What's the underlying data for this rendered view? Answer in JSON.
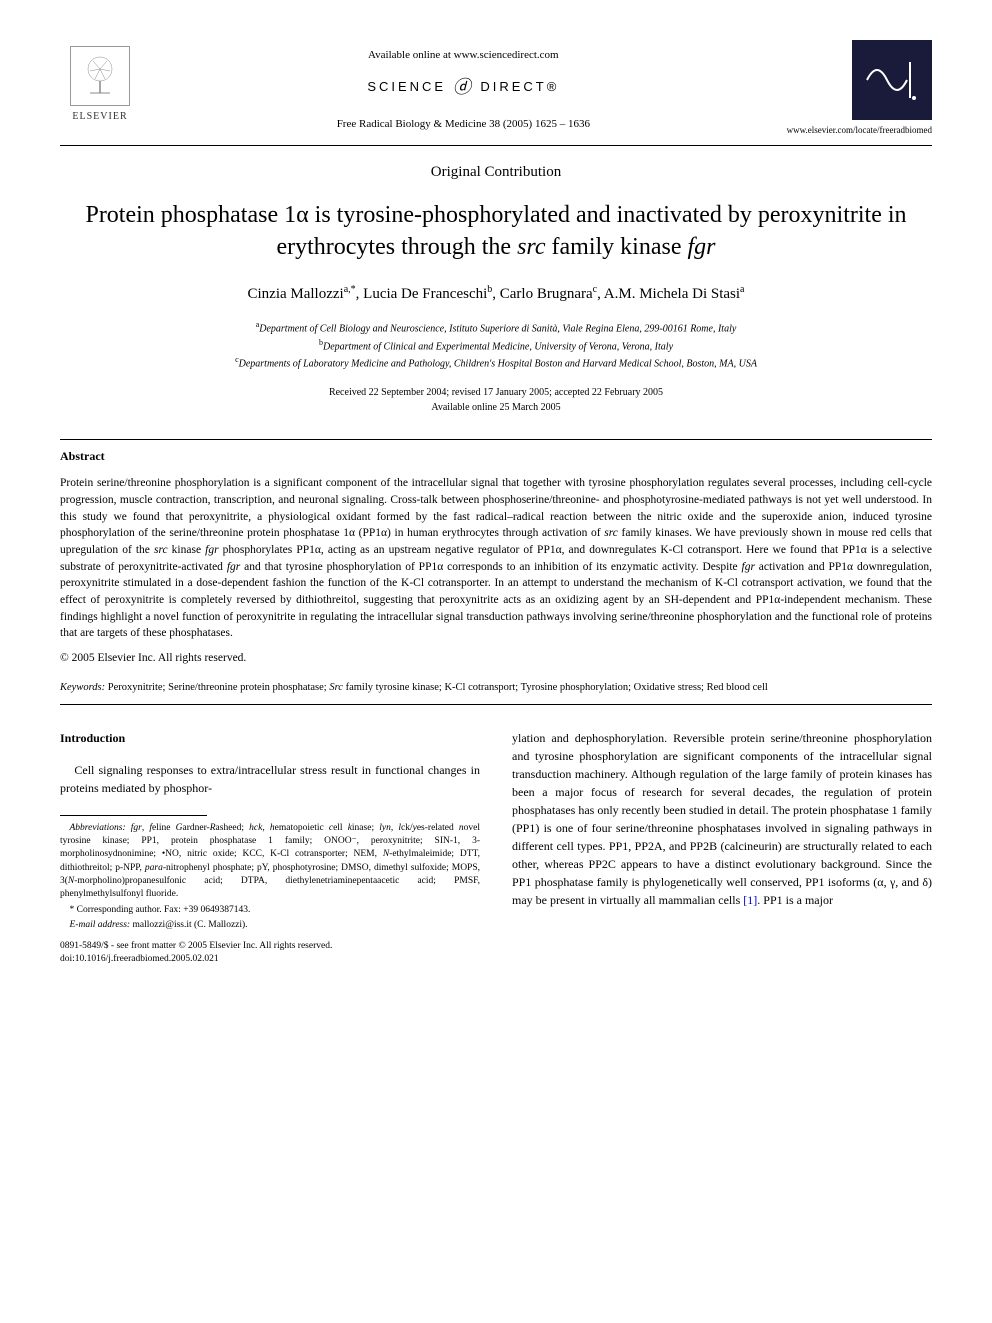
{
  "header": {
    "available_online": "Available online at www.sciencedirect.com",
    "science_direct_prefix": "SCIENCE",
    "science_direct_suffix": "DIRECT®",
    "citation": "Free Radical Biology & Medicine 38 (2005) 1625 – 1636",
    "elsevier_label": "ELSEVIER",
    "journal_url": "www.elsevier.com/locate/freeradbiomed"
  },
  "article_type": "Original Contribution",
  "title_parts": {
    "p1": "Protein phosphatase 1α is tyrosine-phosphorylated and inactivated by peroxynitrite in erythrocytes through the ",
    "p2": "src",
    "p3": " family kinase ",
    "p4": "fgr"
  },
  "authors_html": "Cinzia Mallozzi",
  "authors": {
    "a1": "Cinzia Mallozzi",
    "a1_sup": "a,*",
    "a2": "Lucia De Franceschi",
    "a2_sup": "b",
    "a3": "Carlo Brugnara",
    "a3_sup": "c",
    "a4": "A.M. Michela Di Stasi",
    "a4_sup": "a"
  },
  "affiliations": {
    "a": "Department of Cell Biology and Neuroscience, Istituto Superiore di Sanità, Viale Regina Elena, 299-00161 Rome, Italy",
    "b": "Department of Clinical and Experimental Medicine, University of Verona, Verona, Italy",
    "c": "Departments of Laboratory Medicine and Pathology, Children's Hospital Boston and Harvard Medical School, Boston, MA, USA"
  },
  "dates": {
    "line1": "Received 22 September 2004; revised 17 January 2005; accepted 22 February 2005",
    "line2": "Available online 25 March 2005"
  },
  "abstract": {
    "heading": "Abstract",
    "text_parts": [
      {
        "t": "Protein serine/threonine phosphorylation is a significant component of the intracellular signal that together with tyrosine phosphorylation regulates several processes, including cell-cycle progression, muscle contraction, transcription, and neuronal signaling. Cross-talk between phosphoserine/threonine- and phosphotyrosine-mediated pathways is not yet well understood. In this study we found that peroxynitrite, a physiological oxidant formed by the fast radical–radical reaction between the nitric oxide and the superoxide anion, induced tyrosine phosphorylation of the serine/threonine protein phosphatase 1α (PP1α) in human erythrocytes through activation of "
      },
      {
        "t": "src",
        "i": true
      },
      {
        "t": " family kinases. We have previously shown in mouse red cells that upregulation of the "
      },
      {
        "t": "src",
        "i": true
      },
      {
        "t": " kinase "
      },
      {
        "t": "fgr",
        "i": true
      },
      {
        "t": " phosphorylates PP1α, acting as an upstream negative regulator of PP1α, and downregulates K-Cl cotransport. Here we found that PP1α is a selective substrate of peroxynitrite-activated "
      },
      {
        "t": "fgr",
        "i": true
      },
      {
        "t": " and that tyrosine phosphorylation of PP1α corresponds to an inhibition of its enzymatic activity. Despite "
      },
      {
        "t": "fgr",
        "i": true
      },
      {
        "t": " activation and PP1α downregulation, peroxynitrite stimulated in a dose-dependent fashion the function of the K-Cl cotransporter. In an attempt to understand the mechanism of K-Cl cotransport activation, we found that the effect of peroxynitrite is completely reversed by dithiothreitol, suggesting that peroxynitrite acts as an oxidizing agent by an SH-dependent and PP1α-independent mechanism. These findings highlight a novel function of peroxynitrite in regulating the intracellular signal transduction pathways involving serine/threonine phosphorylation and the functional role of proteins that are targets of these phosphatases."
      }
    ],
    "copyright": "© 2005 Elsevier Inc. All rights reserved."
  },
  "keywords": {
    "label": "Keywords:",
    "text_parts": [
      {
        "t": " Peroxynitrite; Serine/threonine protein phosphatase; "
      },
      {
        "t": "Src",
        "i": true
      },
      {
        "t": " family tyrosine kinase; K-Cl cotransport; Tyrosine phosphorylation; Oxidative stress; Red blood cell"
      }
    ]
  },
  "intro": {
    "heading": "Introduction",
    "col1_p1": "Cell signaling responses to extra/intracellular stress result in functional changes in proteins mediated by phosphor-",
    "col2_p1_parts": [
      {
        "t": "ylation and dephosphorylation. Reversible protein serine/threonine phosphorylation and tyrosine phosphorylation are significant components of the intracellular signal transduction machinery. Although regulation of the large family of protein kinases has been a major focus of research for several decades, the regulation of protein phosphatases has only recently been studied in detail. The protein phosphatase 1 family (PP1) is one of four serine/threonine phosphatases involved in signaling pathways in different cell types. PP1, PP2A, and PP2B (calcineurin) are structurally related to each other, whereas PP2C appears to have a distinct evolutionary background. Since the PP1 phosphatase family is phylogenetically well conserved, PP1 isoforms (α, γ, and δ) may be present in virtually all mammalian cells "
      },
      {
        "t": "[1]",
        "link": true
      },
      {
        "t": ". PP1 is a major"
      }
    ]
  },
  "footnotes": {
    "abbrev_label": "Abbreviations:",
    "abbrev_parts": [
      {
        "t": " fgr",
        "i": true
      },
      {
        "t": ", "
      },
      {
        "t": "f",
        "i": true
      },
      {
        "t": "eline "
      },
      {
        "t": "G",
        "i": true
      },
      {
        "t": "ardner-"
      },
      {
        "t": "R",
        "i": true
      },
      {
        "t": "asheed; "
      },
      {
        "t": "hck",
        "i": true
      },
      {
        "t": ", "
      },
      {
        "t": "h",
        "i": true
      },
      {
        "t": "ematopoietic "
      },
      {
        "t": "c",
        "i": true
      },
      {
        "t": "ell "
      },
      {
        "t": "k",
        "i": true
      },
      {
        "t": "inase; "
      },
      {
        "t": "lyn",
        "i": true
      },
      {
        "t": ", "
      },
      {
        "t": "l",
        "i": true
      },
      {
        "t": "ck/"
      },
      {
        "t": "y",
        "i": true
      },
      {
        "t": "es-related "
      },
      {
        "t": "n",
        "i": true
      },
      {
        "t": "ovel tyrosine kinase; PP1, protein phosphatase 1 family; ONOO⁻, peroxynitrite; SIN-1, 3-morpholinosydnonimine; •NO, nitric oxide; KCC, K-Cl cotransporter; NEM, "
      },
      {
        "t": "N",
        "i": true
      },
      {
        "t": "-ethylmaleimide; DTT, dithiothreitol; p-NPP, "
      },
      {
        "t": "para",
        "i": true
      },
      {
        "t": "-nitrophenyl phosphate; pY, phosphotyrosine; DMSO, dimethyl sulfoxide; MOPS, 3("
      },
      {
        "t": "N",
        "i": true
      },
      {
        "t": "-morpholino)propanesulfonic acid; DTPA, diethylenetriaminepentaacetic acid; PMSF, phenylmethylsulfonyl fluoride."
      }
    ],
    "corr": "* Corresponding author. Fax: +39 0649387143.",
    "email_label": "E-mail address:",
    "email": " mallozzi@iss.it (C. Mallozzi)."
  },
  "footer": {
    "left1": "0891-5849/$ - see front matter © 2005 Elsevier Inc. All rights reserved.",
    "left2": "doi:10.1016/j.freeradbiomed.2005.02.021"
  },
  "colors": {
    "text": "#000000",
    "bg": "#ffffff",
    "link": "#0000cc",
    "logo_bg": "#1a1a3a",
    "logo_stroke": "#ffffff"
  }
}
